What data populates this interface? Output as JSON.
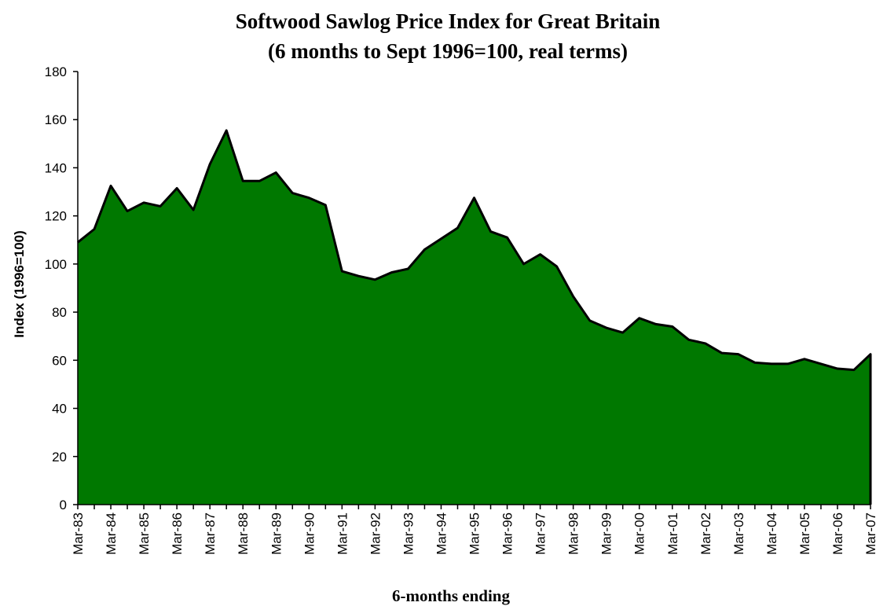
{
  "chart_data": {
    "type": "area",
    "title": "Softwood Sawlog Price Index for Great Britain",
    "subtitle": "(6 months to Sept 1996=100, real terms)",
    "xlabel": "6-months ending",
    "ylabel": "Index (1996=100)",
    "ylim": [
      0,
      180
    ],
    "yticks": [
      0,
      20,
      40,
      60,
      80,
      100,
      120,
      140,
      160,
      180
    ],
    "x_tick_labels": [
      "Mar-83",
      "Mar-84",
      "Mar-85",
      "Mar-86",
      "Mar-87",
      "Mar-88",
      "Mar-89",
      "Mar-90",
      "Mar-91",
      "Mar-92",
      "Mar-93",
      "Mar-94",
      "Mar-95",
      "Mar-96",
      "Mar-97",
      "Mar-98",
      "Mar-99",
      "Mar-00",
      "Mar-01",
      "Mar-02",
      "Mar-03",
      "Mar-04",
      "Mar-05",
      "Mar-06",
      "Mar-07"
    ],
    "x": [
      "Mar-83",
      "Sep-83",
      "Mar-84",
      "Sep-84",
      "Mar-85",
      "Sep-85",
      "Mar-86",
      "Sep-86",
      "Mar-87",
      "Sep-87",
      "Mar-88",
      "Sep-88",
      "Mar-89",
      "Sep-89",
      "Mar-90",
      "Sep-90",
      "Mar-91",
      "Sep-91",
      "Mar-92",
      "Sep-92",
      "Mar-93",
      "Sep-93",
      "Mar-94",
      "Sep-94",
      "Mar-95",
      "Sep-95",
      "Mar-96",
      "Sep-96",
      "Mar-97",
      "Sep-97",
      "Mar-98",
      "Sep-98",
      "Mar-99",
      "Sep-99",
      "Mar-00",
      "Sep-00",
      "Mar-01",
      "Sep-01",
      "Mar-02",
      "Sep-02",
      "Mar-03",
      "Sep-03",
      "Mar-04",
      "Sep-04",
      "Mar-05",
      "Sep-05",
      "Mar-06",
      "Sep-06",
      "Mar-07"
    ],
    "series": [
      {
        "values": [
          109,
          114.5,
          132.5,
          122,
          125.5,
          124,
          131.5,
          122.5,
          141.5,
          155.5,
          134.5,
          134.5,
          138,
          129.5,
          127.5,
          124.5,
          97,
          95,
          93.5,
          96.5,
          98,
          106,
          110.5,
          115,
          127.5,
          113.5,
          111,
          100,
          104,
          99,
          86.5,
          76.5,
          73.5,
          71.5,
          77.5,
          75,
          74,
          68.5,
          67,
          63,
          62.5,
          59,
          58.5,
          58.5,
          60.5,
          58.5,
          56.5,
          56,
          62.5
        ]
      }
    ],
    "colors": {
      "fill": "#007800",
      "line": "#000000",
      "axis": "#000000"
    },
    "grid": false,
    "legend": "none"
  }
}
